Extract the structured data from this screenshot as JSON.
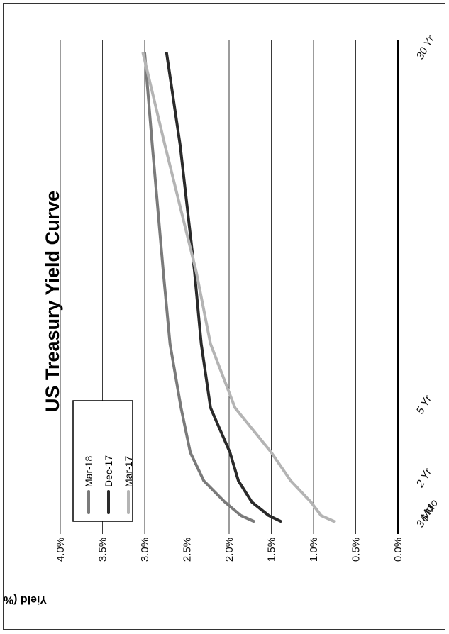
{
  "chart_data": {
    "type": "line",
    "title": "US Treasury Yield Curve",
    "ylabel": "Yield (%)",
    "xlabel": "",
    "ylim": [
      0,
      4
    ],
    "y_ticks": [
      "0.0%",
      "0.5%",
      "1.0%",
      "1.5%",
      "2.0%",
      "2.5%",
      "3.0%",
      "3.5%",
      "4.0%"
    ],
    "y_tick_values": [
      0,
      0.5,
      1,
      1.5,
      2,
      2.5,
      3,
      3.5,
      4
    ],
    "x_ticks": [
      "3 Mo",
      "6 Mo",
      "2 Yr",
      "5 Yr",
      "30 Yr"
    ],
    "x_tick_values": [
      0.25,
      0.5,
      2,
      5,
      30
    ],
    "grid": true,
    "legend_position": "top-left (rotated)",
    "rotation": "page rotated 90 degrees counter-clockwise",
    "series": [
      {
        "name": "Mar-18",
        "color": "#7a7a7a",
        "x": [
          0.25,
          0.5,
          1,
          2,
          3,
          5,
          7,
          10,
          20,
          30
        ],
        "y": [
          1.71,
          1.86,
          2.05,
          2.3,
          2.46,
          2.57,
          2.7,
          2.78,
          2.91,
          3.0
        ]
      },
      {
        "name": "Dec-17",
        "color": "#2a2a2a",
        "x": [
          0.25,
          0.5,
          1,
          2,
          3,
          5,
          7,
          10,
          20,
          30
        ],
        "y": [
          1.39,
          1.53,
          1.73,
          1.89,
          1.99,
          2.22,
          2.33,
          2.41,
          2.58,
          2.74
        ]
      },
      {
        "name": "Mar-17",
        "color": "#b4b4b4",
        "x": [
          0.25,
          0.5,
          1,
          2,
          3,
          5,
          7,
          10,
          20,
          30
        ],
        "y": [
          0.76,
          0.91,
          1.03,
          1.27,
          1.5,
          1.93,
          2.22,
          2.39,
          2.76,
          3.02
        ]
      }
    ]
  }
}
